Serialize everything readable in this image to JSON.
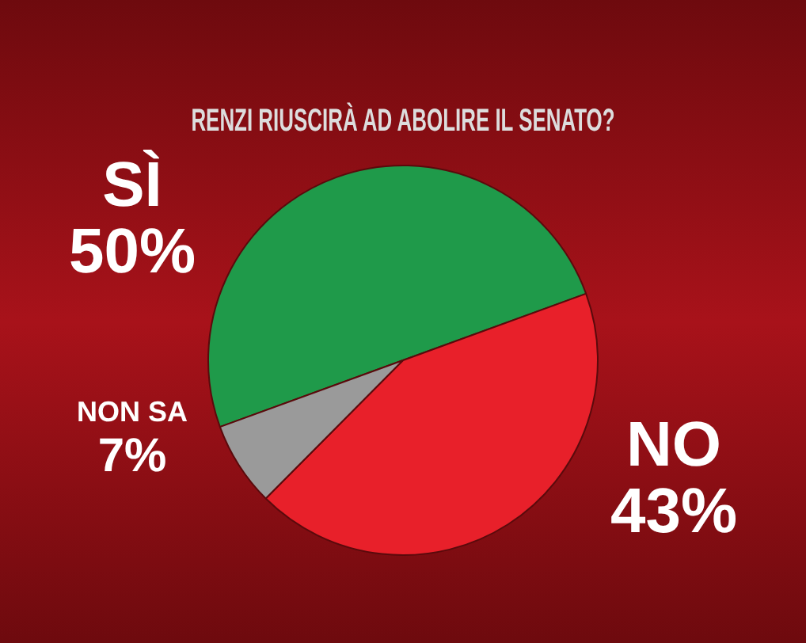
{
  "chart_data": {
    "type": "pie",
    "title": "RENZI RIUSCIRÀ AD ABOLIRE IL SENATO?",
    "categories": [
      "SÌ",
      "NO",
      "NON SA"
    ],
    "values": [
      50,
      43,
      7
    ],
    "value_labels": [
      "50%",
      "43%",
      "7%"
    ],
    "colors": [
      "#1f9a4a",
      "#e8202a",
      "#9a9a9a"
    ]
  }
}
